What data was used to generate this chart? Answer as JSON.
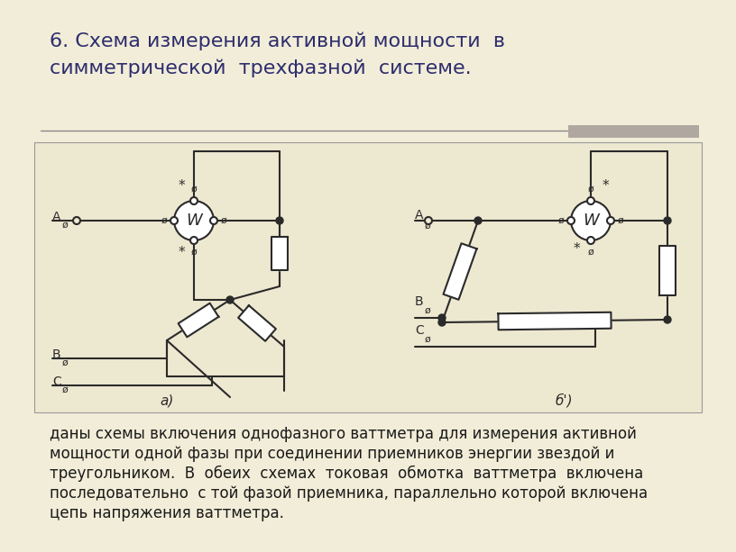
{
  "bg_color": "#f2edd8",
  "title_line1": "6. Схема измерения активной мощности  в",
  "title_line2": "симметрической  трехфазной  системе.",
  "title_color": "#2d2d6e",
  "title_fontsize": 16,
  "separator_color": "#888888",
  "diagram_bg": "#ede8d0",
  "diagram_border": "#999999",
  "line_color": "#2a2a2a",
  "line_width": 1.5,
  "body_text_line1": "даны схемы включения однофазного ваттметра для измерения активной",
  "body_text_line2": "мощности одной фазы при соединении приемников энергии звездой и",
  "body_text_line3": "треугольником.  В  обеих  схемах  токовая  обмотка  ваттметра  включена",
  "body_text_line4": "последовательно  с той фазой приемника, параллельно которой включена",
  "body_text_line5": "цепь напряжения ваттметра.",
  "body_color": "#1a1a1a",
  "body_fontsize": 12.0,
  "gray_rect_color": "#b0a8a0"
}
